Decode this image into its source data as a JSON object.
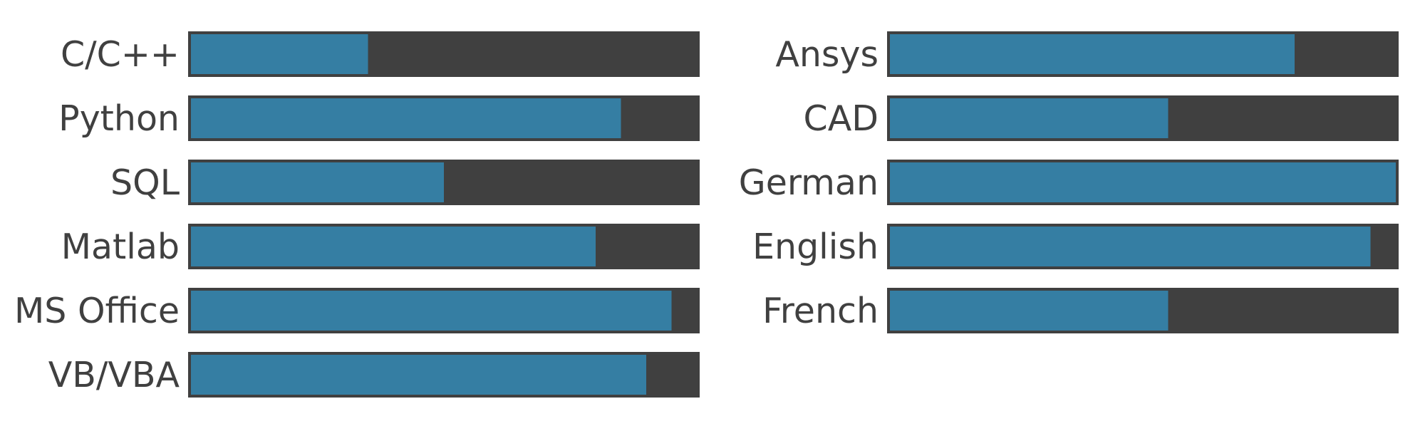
{
  "chart_data": [
    {
      "type": "bar",
      "orientation": "horizontal",
      "categories": [
        "C/C++",
        "Python",
        "SQL",
        "Matlab",
        "MS Office",
        "VB/VBA"
      ],
      "values": [
        3.5,
        8.5,
        5.0,
        8.0,
        9.5,
        9.0
      ],
      "xlim": [
        0,
        10
      ],
      "grid": false,
      "colors": {
        "fill": "#357ea3",
        "track": "#404040",
        "label": "#404040"
      }
    },
    {
      "type": "bar",
      "orientation": "horizontal",
      "categories": [
        "Ansys",
        "CAD",
        "German",
        "English",
        "French"
      ],
      "values": [
        8.0,
        5.5,
        10.0,
        9.5,
        5.5
      ],
      "xlim": [
        0,
        10
      ],
      "grid": false,
      "colors": {
        "fill": "#357ea3",
        "track": "#404040",
        "label": "#404040"
      }
    }
  ]
}
